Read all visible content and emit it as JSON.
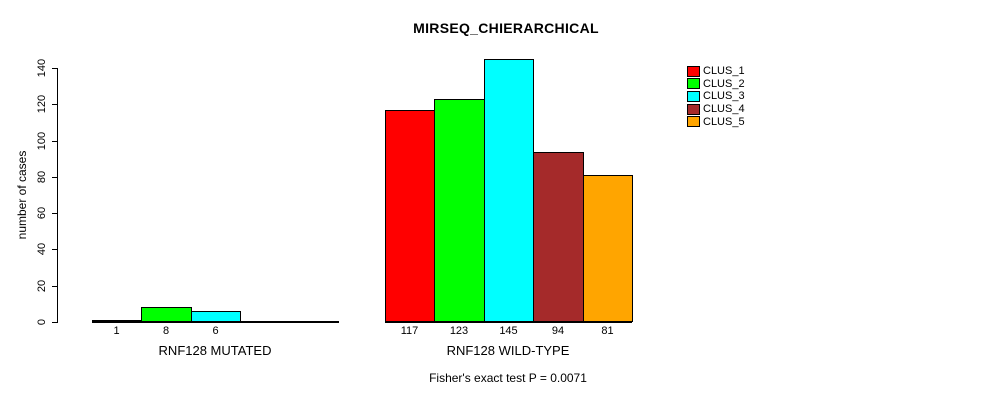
{
  "chart_data": {
    "type": "bar",
    "title": "MIRSEQ_CHIERARCHICAL",
    "subtitle": "Fisher's exact test P = 0.0071",
    "ylabel": "number of cases",
    "xlabel": "",
    "ylim": [
      0,
      145
    ],
    "yticks": [
      0,
      20,
      40,
      60,
      80,
      100,
      120,
      140
    ],
    "grid": false,
    "legend_position": "top-right",
    "legend": [
      {
        "name": "CLUS_1",
        "color": "#ff0000"
      },
      {
        "name": "CLUS_2",
        "color": "#00ff00"
      },
      {
        "name": "CLUS_3",
        "color": "#00ffff"
      },
      {
        "name": "CLUS_4",
        "color": "#a52a2a"
      },
      {
        "name": "CLUS_5",
        "color": "#ffa500"
      }
    ],
    "groups": [
      {
        "label": "RNF128 MUTATED",
        "series": [
          "CLUS_1",
          "CLUS_2",
          "CLUS_3",
          "CLUS_4",
          "CLUS_5"
        ],
        "values": [
          1,
          8,
          6,
          0,
          0
        ],
        "value_labels": [
          "1",
          "8",
          "6",
          "",
          ""
        ]
      },
      {
        "label": "RNF128 WILD-TYPE",
        "series": [
          "CLUS_1",
          "CLUS_2",
          "CLUS_3",
          "CLUS_4",
          "CLUS_5"
        ],
        "values": [
          117,
          123,
          145,
          94,
          81
        ],
        "value_labels": [
          "117",
          "123",
          "145",
          "94",
          "81"
        ]
      }
    ]
  },
  "colors": {
    "background": "#ffffff",
    "axis": "#000000",
    "text": "#000000",
    "bar_border": "#000000"
  }
}
